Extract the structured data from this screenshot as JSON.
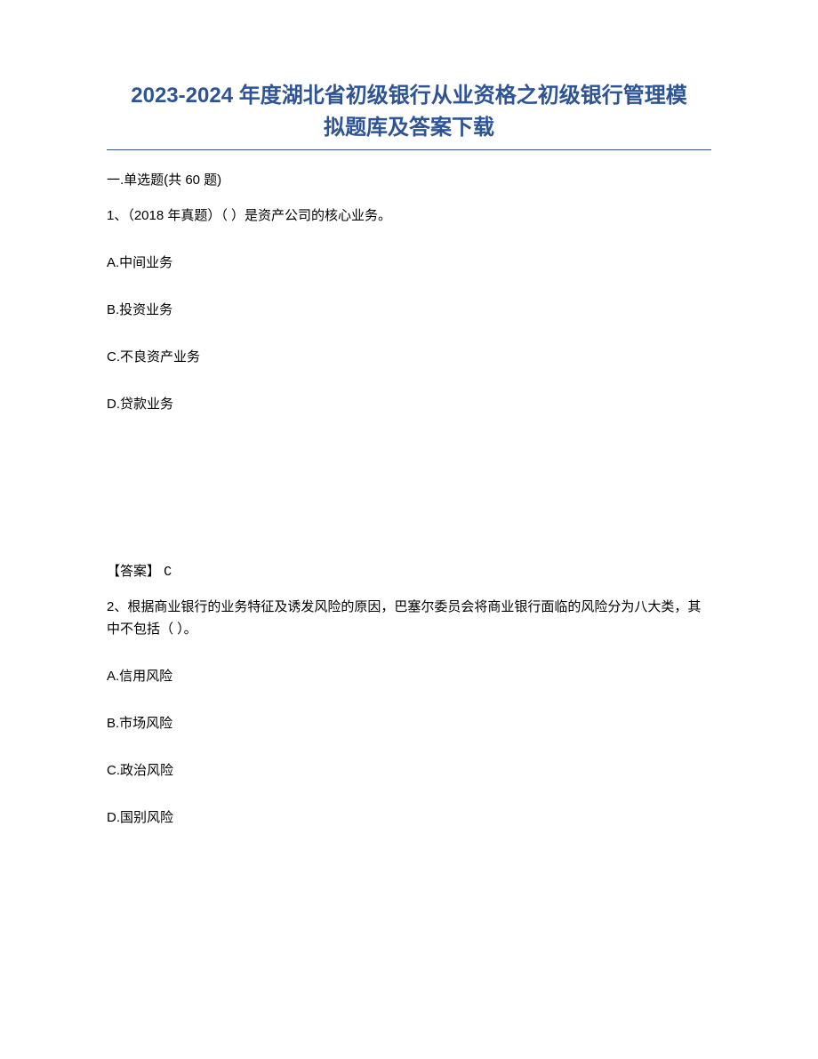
{
  "title_line1": "2023-2024 年度湖北省初级银行从业资格之初级银行管理模",
  "title_line2": "拟题库及答案下载",
  "section_header": "一.单选题(共 60 题)",
  "q1": {
    "stem": "1、（2018 年真题）（ ）是资产公司的核心业务。",
    "options": {
      "A": "A.中间业务",
      "B": "B.投资业务",
      "C": "C.不良资产业务",
      "D": "D.贷款业务"
    },
    "answer_label": "【答案】 ",
    "answer_letter": "C"
  },
  "q2": {
    "stem": "2、根据商业银行的业务特征及诱发风险的原因，巴塞尔委员会将商业银行面临的风险分为八大类，其中不包括（ ）。",
    "options": {
      "A": "A.信用风险",
      "B": "B.市场风险",
      "C": "C.政治风险",
      "D": "D.国别风险"
    }
  },
  "colors": {
    "title": "#2e5496",
    "divider": "#2e5496",
    "text": "#000000",
    "background": "#ffffff"
  }
}
